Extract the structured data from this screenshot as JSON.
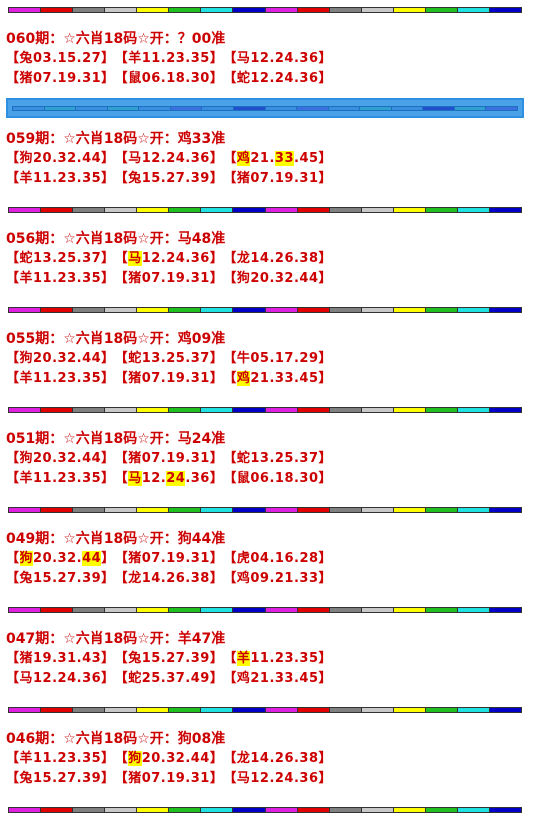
{
  "stripe_colors": [
    "#e020e0",
    "#e00000",
    "#808080",
    "#c8c8c8",
    "#ffff00",
    "#20c020",
    "#20e0e0",
    "#0000c8",
    "#e020e0",
    "#e00000",
    "#808080",
    "#c8c8c8",
    "#ffff00",
    "#20c020",
    "#20e0e0",
    "#0000c8"
  ],
  "band_colors": [
    "#3a8ee0",
    "#2fa0d0",
    "#3a8ee0",
    "#2fa0d0",
    "#3a8ee0",
    "#3a70e0",
    "#3a8ee0",
    "#2050d0",
    "#3a8ee0",
    "#3a70e0",
    "#3a8ee0",
    "#2fa0d0",
    "#3a8ee0",
    "#2050d0",
    "#2fa0d0",
    "#3a70e0"
  ],
  "sections": [
    {
      "title": "060期：☆六肖18码☆开：？00准",
      "rows": [
        [
          {
            "pre": "【",
            "hl": "",
            "post": "兔03.15.27】"
          },
          {
            "pre": "【",
            "hl": "",
            "post": "羊11.23.35】"
          },
          {
            "pre": "【",
            "hl": "",
            "post": "马12.24.36】"
          }
        ],
        [
          {
            "pre": "【",
            "hl": "",
            "post": "猪07.19.31】"
          },
          {
            "pre": "【",
            "hl": "",
            "post": "鼠06.18.30】"
          },
          {
            "pre": "【",
            "hl": "",
            "post": "蛇12.24.36】"
          }
        ]
      ]
    },
    {
      "title": "059期：☆六肖18码☆开：鸡33准",
      "rows": [
        [
          {
            "pre": "【",
            "hl": "",
            "post": "狗20.32.44】"
          },
          {
            "pre": "【",
            "hl": "",
            "post": "马12.24.36】"
          },
          {
            "pre": "【",
            "hl": "鸡",
            "post": "21.",
            "hl2": "33",
            "post2": ".45】"
          }
        ],
        [
          {
            "pre": "【",
            "hl": "",
            "post": "羊11.23.35】"
          },
          {
            "pre": "【",
            "hl": "",
            "post": "兔15.27.39】"
          },
          {
            "pre": "【",
            "hl": "",
            "post": "猪07.19.31】"
          }
        ]
      ]
    },
    {
      "title": "056期：☆六肖18码☆开：马48准",
      "rows": [
        [
          {
            "pre": "【",
            "hl": "",
            "post": "蛇13.25.37】"
          },
          {
            "pre": "【",
            "hl": "马",
            "post": "12.24.36】"
          },
          {
            "pre": "【",
            "hl": "",
            "post": "龙14.26.38】"
          }
        ],
        [
          {
            "pre": "【",
            "hl": "",
            "post": "羊11.23.35】"
          },
          {
            "pre": "【",
            "hl": "",
            "post": "猪07.19.31】"
          },
          {
            "pre": "【",
            "hl": "",
            "post": "狗20.32.44】"
          }
        ]
      ]
    },
    {
      "title": "055期：☆六肖18码☆开：鸡09准",
      "rows": [
        [
          {
            "pre": "【",
            "hl": "",
            "post": "狗20.32.44】"
          },
          {
            "pre": "【",
            "hl": "",
            "post": "蛇13.25.37】"
          },
          {
            "pre": "【",
            "hl": "",
            "post": "牛05.17.29】"
          }
        ],
        [
          {
            "pre": "【",
            "hl": "",
            "post": "羊11.23.35】"
          },
          {
            "pre": "【",
            "hl": "",
            "post": "猪07.19.31】"
          },
          {
            "pre": "【",
            "hl": "鸡",
            "post": "21.33.45】"
          }
        ]
      ]
    },
    {
      "title": "051期：☆六肖18码☆开：马24准",
      "rows": [
        [
          {
            "pre": "【",
            "hl": "",
            "post": "狗20.32.44】"
          },
          {
            "pre": "【",
            "hl": "",
            "post": "猪07.19.31】"
          },
          {
            "pre": "【",
            "hl": "",
            "post": "蛇13.25.37】"
          }
        ],
        [
          {
            "pre": "【",
            "hl": "",
            "post": "羊11.23.35】"
          },
          {
            "pre": "【",
            "hl": "马",
            "post": "12.",
            "hl2": "24",
            "post2": ".36】"
          },
          {
            "pre": "【",
            "hl": "",
            "post": "鼠06.18.30】"
          }
        ]
      ]
    },
    {
      "title": "049期：☆六肖18码☆开：狗44准",
      "rows": [
        [
          {
            "pre": "【",
            "hl": "狗",
            "post": "20.32.",
            "hl2": "44",
            "post2": "】"
          },
          {
            "pre": "【",
            "hl": "",
            "post": "猪07.19.31】"
          },
          {
            "pre": "【",
            "hl": "",
            "post": "虎04.16.28】"
          }
        ],
        [
          {
            "pre": "【",
            "hl": "",
            "post": "兔15.27.39】"
          },
          {
            "pre": "【",
            "hl": "",
            "post": "龙14.26.38】"
          },
          {
            "pre": "【",
            "hl": "",
            "post": "鸡09.21.33】"
          }
        ]
      ]
    },
    {
      "title": "047期：☆六肖18码☆开：羊47准",
      "rows": [
        [
          {
            "pre": "【",
            "hl": "",
            "post": "猪19.31.43】"
          },
          {
            "pre": "【",
            "hl": "",
            "post": "兔15.27.39】"
          },
          {
            "pre": "【",
            "hl": "羊",
            "post": "11.23.35】"
          }
        ],
        [
          {
            "pre": "【",
            "hl": "",
            "post": "马12.24.36】"
          },
          {
            "pre": "【",
            "hl": "",
            "post": "蛇25.37.49】"
          },
          {
            "pre": "【",
            "hl": "",
            "post": "鸡21.33.45】"
          }
        ]
      ]
    },
    {
      "title": "046期：☆六肖18码☆开：狗08准",
      "rows": [
        [
          {
            "pre": "【",
            "hl": "",
            "post": "羊11.23.35】"
          },
          {
            "pre": "【",
            "hl": "狗",
            "post": "20.32.44】"
          },
          {
            "pre": "【",
            "hl": "",
            "post": "龙14.26.38】"
          }
        ],
        [
          {
            "pre": "【",
            "hl": "",
            "post": "兔15.27.39】"
          },
          {
            "pre": "【",
            "hl": "",
            "post": "猪07.19.31】"
          },
          {
            "pre": "【",
            "hl": "",
            "post": "马12.24.36】"
          }
        ]
      ]
    }
  ]
}
